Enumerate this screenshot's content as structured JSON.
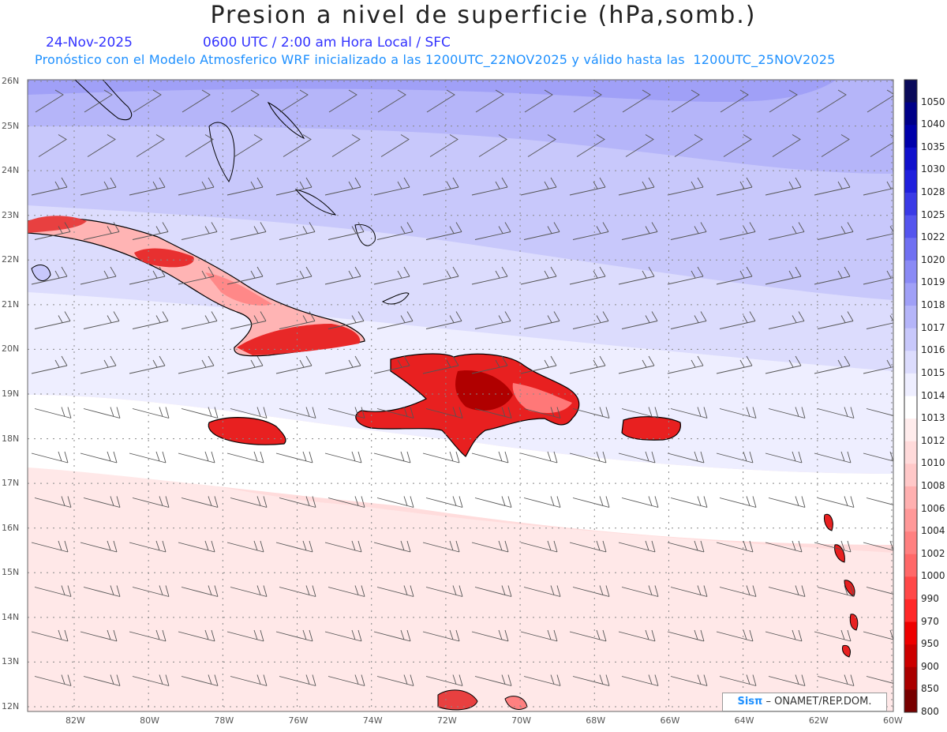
{
  "header": {
    "title": "Presion a nivel de superficie (hPa,somb.)",
    "date": "24-Nov-2025",
    "time_line": "0600 UTC / 2:00 am Hora Local / SFC",
    "model_line": "Pronóstico con el Modelo Atmosferico WRF inicializado a las 1200UTC_22NOV2025 y válido hasta las  1200UTC_25NOV2025"
  },
  "axes": {
    "lat_labels": [
      "26N",
      "25N",
      "24N",
      "23N",
      "22N",
      "21N",
      "20N",
      "19N",
      "18N",
      "17N",
      "16N",
      "15N",
      "14N",
      "13N",
      "12N"
    ],
    "lon_labels": [
      "82W",
      "80W",
      "78W",
      "76W",
      "74W",
      "72W",
      "70W",
      "68W",
      "66W",
      "64W",
      "62W",
      "60W"
    ]
  },
  "colorbar": {
    "levels": [
      "1050",
      "1040",
      "1035",
      "1030",
      "1028",
      "1025",
      "1022",
      "1020",
      "1019",
      "1018",
      "1017",
      "1016",
      "1015",
      "1014",
      "1013",
      "1012",
      "1010",
      "1008",
      "1006",
      "1004",
      "1002",
      "1000",
      "990",
      "970",
      "950",
      "900",
      "850",
      "800"
    ],
    "colors": [
      "#0a0a5a",
      "#000088",
      "#0000aa",
      "#1010cc",
      "#2020dd",
      "#3a3ae6",
      "#5555ee",
      "#7070f2",
      "#8a8af5",
      "#a0a0f7",
      "#b5b5f9",
      "#c8c8fb",
      "#dcdcfd",
      "#eeeeff",
      "#ffffff",
      "#ffecec",
      "#ffdada",
      "#ffc8c8",
      "#ffb0b0",
      "#ff9898",
      "#ff8080",
      "#ff6868",
      "#ff4848",
      "#ff2828",
      "#ee0000",
      "#cc0000",
      "#aa0000",
      "#770000"
    ]
  },
  "credit": {
    "sis": "Sisπ",
    "org": "– ONAMET/REP.DOM."
  }
}
